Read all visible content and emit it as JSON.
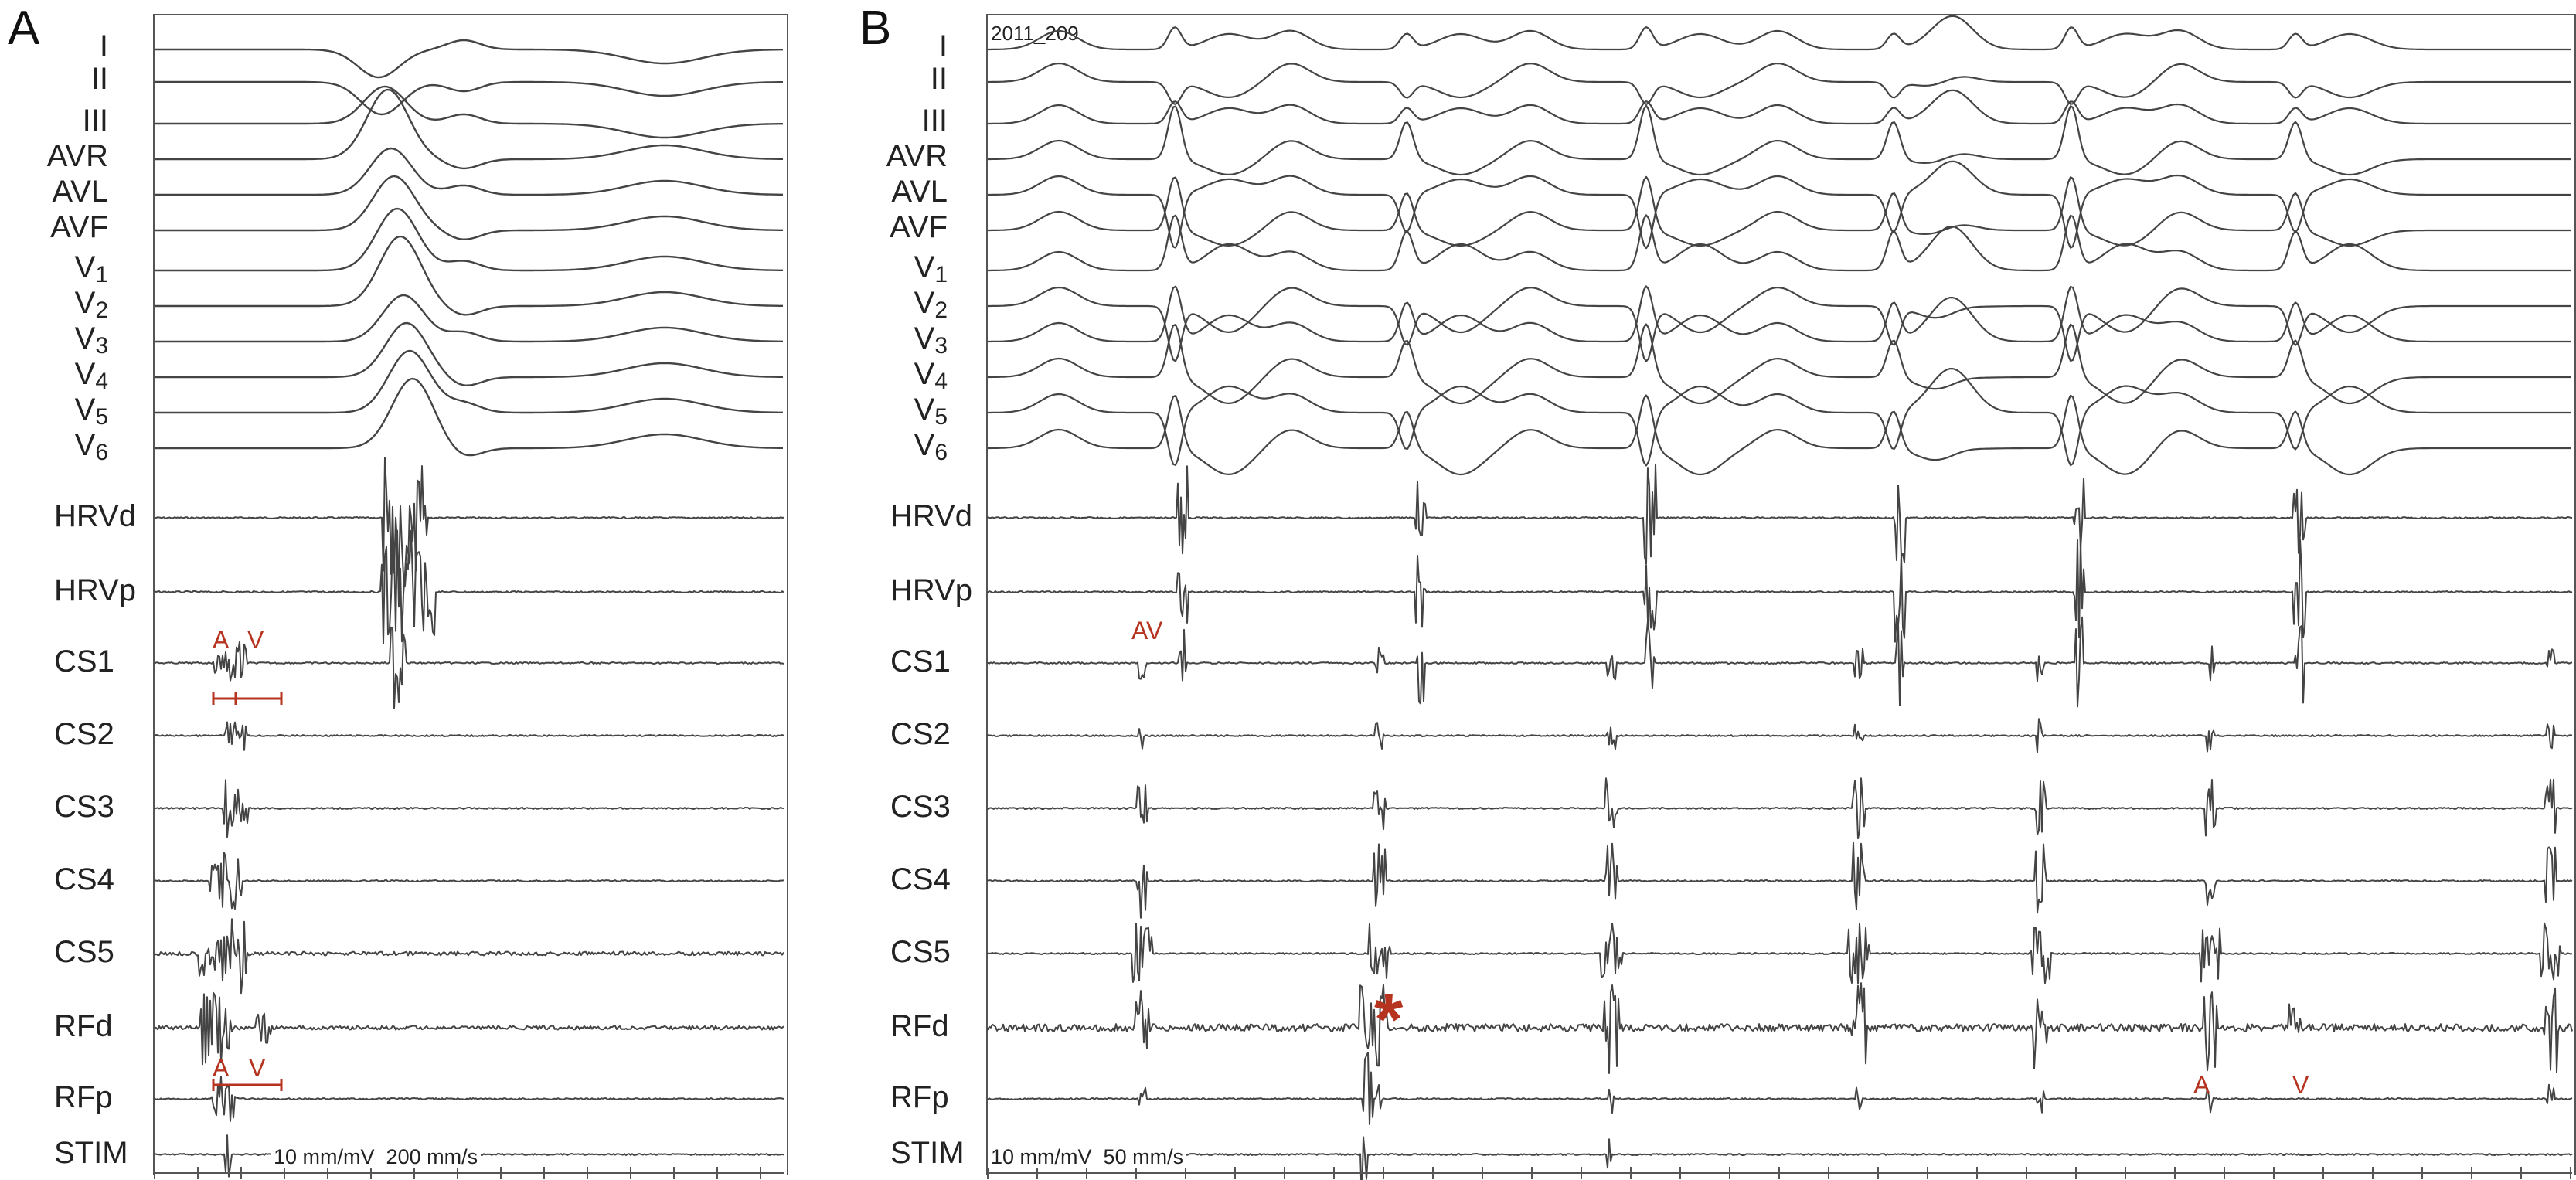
{
  "panels": [
    {
      "id": "A",
      "label": "A",
      "scale": {
        "gain": "10 mm/mV",
        "speed": "200 mm/s"
      },
      "markers": {
        "top_a": "A",
        "top_v": "V",
        "bottom_a": "A",
        "bottom_v": "V"
      }
    },
    {
      "id": "B",
      "label": "B",
      "recording_id": "2011_209",
      "scale": {
        "gain": "10 mm/mV",
        "speed": "50 mm/s"
      },
      "markers": {
        "av": "AV",
        "a": "A",
        "v": "V",
        "asterisk": "*"
      }
    }
  ],
  "ecg_leads": [
    {
      "name": "I",
      "base": "I",
      "sub": ""
    },
    {
      "name": "II",
      "base": "II",
      "sub": ""
    },
    {
      "name": "III",
      "base": "III",
      "sub": ""
    },
    {
      "name": "AVR",
      "base": "AVR",
      "sub": ""
    },
    {
      "name": "AVL",
      "base": "AVL",
      "sub": ""
    },
    {
      "name": "AVF",
      "base": "AVF",
      "sub": ""
    },
    {
      "name": "V1",
      "base": "V",
      "sub": "1"
    },
    {
      "name": "V2",
      "base": "V",
      "sub": "2"
    },
    {
      "name": "V3",
      "base": "V",
      "sub": "3"
    },
    {
      "name": "V4",
      "base": "V",
      "sub": "4"
    },
    {
      "name": "V5",
      "base": "V",
      "sub": "5"
    },
    {
      "name": "V6",
      "base": "V",
      "sub": "6"
    }
  ],
  "intracardiac_channels": [
    "HRVd",
    "HRVp",
    "CS1",
    "CS2",
    "CS3",
    "CS4",
    "CS5",
    "RFd",
    "RFp",
    "STIM"
  ],
  "colors": {
    "trace": "#444444",
    "annotation": "#b5331f",
    "frame": "#555555"
  }
}
